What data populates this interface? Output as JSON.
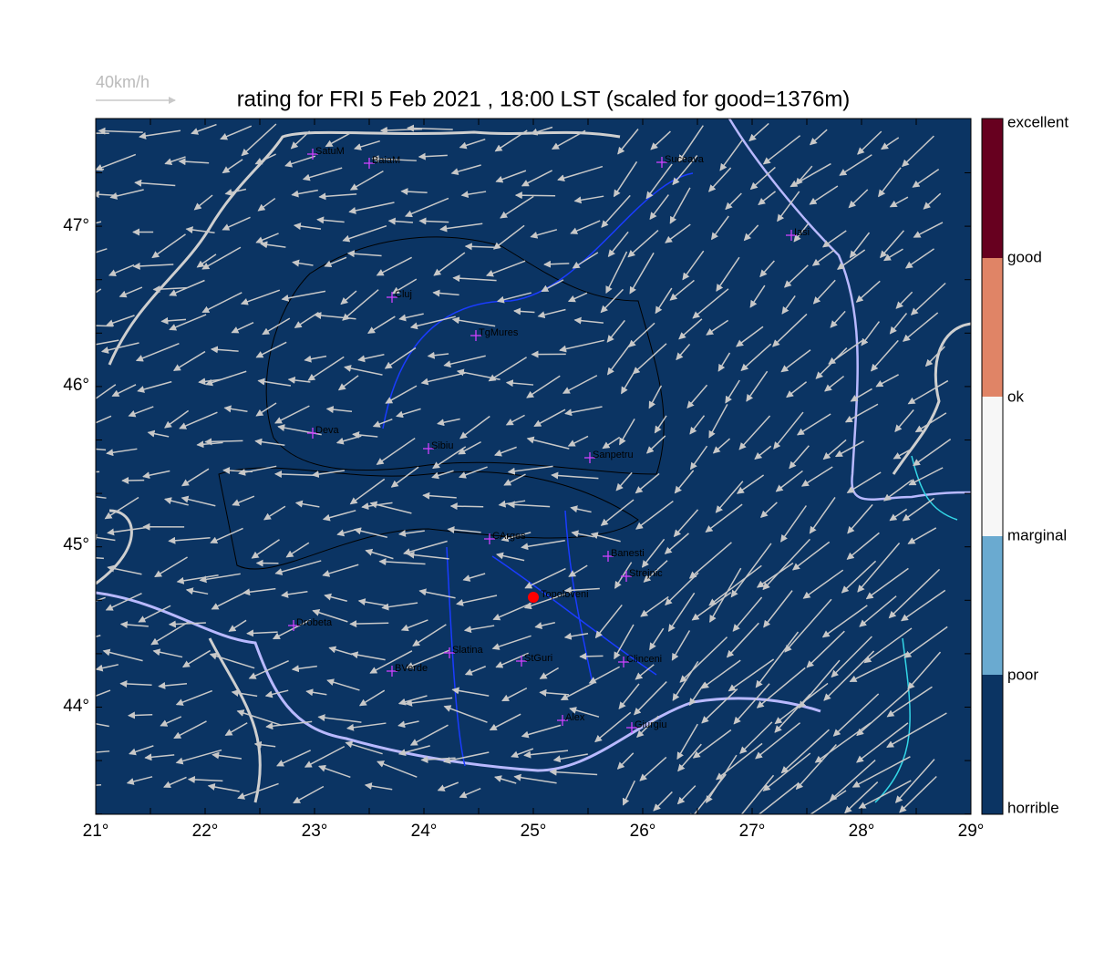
{
  "header": {
    "title": "rating for FRI 5 Feb 2021 , 18:00 LST (scaled for good=1376m)",
    "wind_scale": "40km/h"
  },
  "map": {
    "lon_labels": [
      "21°",
      "22°",
      "23°",
      "24°",
      "25°",
      "26°",
      "27°",
      "28°",
      "29°"
    ],
    "lat_labels": [
      "47°",
      "46°",
      "45°",
      "44°"
    ],
    "places": [
      "SatuM",
      "BaiaM",
      "Suceava",
      "Iasi",
      "Cluj",
      "TgMures",
      "Deva",
      "Sibiu",
      "Sanpetru",
      "CArges",
      "Banesti",
      "Strejnic",
      "Topoloveni",
      "Drobeta",
      "Slatina",
      "StGuri",
      "Clinceni",
      "BVerde",
      "Alex",
      "Giurgiu"
    ]
  },
  "legend": {
    "labels": [
      "excellent",
      "good",
      "ok",
      "marginal",
      "poor",
      "horrible"
    ]
  }
}
